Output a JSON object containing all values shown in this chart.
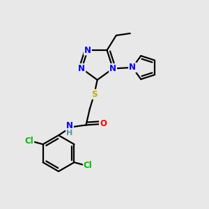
{
  "bg_color": "#e8e8e8",
  "atom_colors": {
    "N": "#0000ff",
    "O": "#ff0000",
    "S": "#ccaa00",
    "Cl": "#00bb00",
    "C": "#000000",
    "H": "#559999"
  },
  "bond_color": "#000000",
  "bond_width": 1.6
}
